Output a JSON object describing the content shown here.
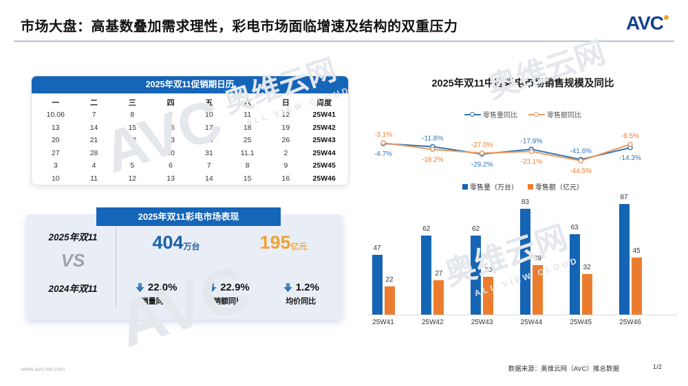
{
  "header": {
    "title": "市场大盘：高基数叠加需求理性，彩电市场面临增速及结构的双重压力",
    "logo_text": "AVC"
  },
  "calendar": {
    "title": "2025年双11促销期日历",
    "headers": [
      "一",
      "二",
      "三",
      "四",
      "五",
      "六",
      "日",
      "周度"
    ],
    "rows": [
      [
        "10.06",
        "7",
        "8",
        "9",
        "10",
        "11",
        "12",
        "25W41"
      ],
      [
        "13",
        "14",
        "15",
        "16",
        "17",
        "18",
        "19",
        "25W42"
      ],
      [
        "20",
        "21",
        "22",
        "23",
        "24",
        "25",
        "26",
        "25W43"
      ],
      [
        "27",
        "28",
        "29",
        "30",
        "31",
        "11.1",
        "2",
        "25W44"
      ],
      [
        "3",
        "4",
        "5",
        "6",
        "7",
        "8",
        "9",
        "25W45"
      ],
      [
        "10",
        "11",
        "12",
        "13",
        "14",
        "15",
        "16",
        "25W46"
      ]
    ]
  },
  "performance": {
    "header": "2025年双11彩电市场表现",
    "compare_top": "2025年双11",
    "vs_label": "VS",
    "compare_bottom": "2024年双11",
    "stats": [
      {
        "value": "404",
        "unit": "万台",
        "color": "#1961AC"
      },
      {
        "value": "195",
        "unit": "亿元",
        "color": "#F2A331"
      }
    ],
    "declines": [
      {
        "pct": "22.0%",
        "label": "销量同比"
      },
      {
        "pct": "22.9%",
        "label": "销额同比"
      },
      {
        "pct": "1.2%",
        "label": "均价同比"
      }
    ]
  },
  "chart_data": [
    {
      "type": "line",
      "title": "2025年双11中国彩电市场销售规模及同比",
      "categories": [
        "25W41",
        "25W42",
        "25W43",
        "25W44",
        "25W45",
        "25W46"
      ],
      "series": [
        {
          "name": "零售量同比",
          "color": "#2E74B5",
          "label_color": "#2E74B5",
          "values": [
            -4.7,
            -11.8,
            -29.2,
            -17.9,
            -41.6,
            -14.3
          ]
        },
        {
          "name": "零售额同比",
          "color": "#E89A5F",
          "label_color": "#ED7D2E",
          "values": [
            -3.1,
            -18.2,
            -27.0,
            -23.1,
            -44.5,
            -6.5
          ]
        }
      ],
      "unit": "%",
      "grid": false,
      "legend_position": "top",
      "ylim": [
        -50,
        0
      ]
    },
    {
      "type": "bar",
      "title": "",
      "categories": [
        "25W41",
        "25W42",
        "25W43",
        "25W44",
        "25W45",
        "25W46"
      ],
      "series": [
        {
          "name": "零售量（万台）",
          "color": "#1565B4",
          "values": [
            47,
            62,
            62,
            83,
            63,
            87
          ]
        },
        {
          "name": "零售额（亿元）",
          "color": "#ED7D2E",
          "values": [
            22,
            27,
            30,
            39,
            32,
            45
          ]
        }
      ],
      "grid": false,
      "legend_position": "top",
      "ylim": [
        0,
        90
      ]
    }
  ],
  "watermark": {
    "brand": "AVC",
    "name": "奥维云网",
    "slogan": "ALL VIEW CLOUD"
  },
  "footer": {
    "site": "www.avc-mr.com",
    "source": "数据来源：奥维云网（AVC）推总数据",
    "page": "1/2"
  },
  "colors": {
    "primary_blue": "#1565B8",
    "bar_blue": "#1565B4",
    "bar_orange": "#ED7D2E",
    "line_blue": "#2E74B5",
    "line_orange": "#E89A5F",
    "accent_gold": "#F2A331",
    "rule_blue": "#A9C6D8"
  }
}
